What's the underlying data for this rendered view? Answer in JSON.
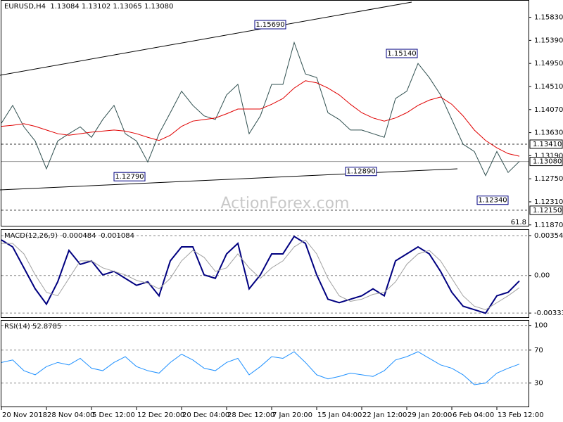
{
  "chart_data": [
    {
      "type": "line",
      "title": "EURUSD,H4  1.13084 1.13102 1.13065 1.13080",
      "watermark": "ActionForex.com",
      "fib_label": "61.8",
      "categories": [
        "20 Nov 2018",
        null,
        null,
        null,
        "28 Nov 04:00",
        null,
        null,
        null,
        "5 Dec 12:00",
        null,
        null,
        null,
        "12 Dec 20:00",
        null,
        null,
        null,
        "20 Dec 04:00",
        null,
        null,
        null,
        "28 Dec 12:00",
        null,
        null,
        null,
        "7 Jan 20:00",
        null,
        null,
        null,
        "15 Jan 04:00",
        null,
        null,
        null,
        "22 Jan 12:00",
        null,
        null,
        null,
        "29 Jan 20:00",
        null,
        null,
        null,
        "6 Feb 04:00",
        null,
        null,
        null,
        "13 Feb 12:00",
        null,
        null
      ],
      "series": [
        {
          "color": "#2f4f4f",
          "values": [
            1.1381,
            1.1415,
            1.1374,
            1.1347,
            1.1294,
            1.1347,
            1.1361,
            1.1374,
            1.1354,
            1.1388,
            1.1415,
            1.1361,
            1.1347,
            1.1307,
            1.1361,
            1.1401,
            1.1442,
            1.1415,
            1.1395,
            1.1388,
            1.1435,
            1.1455,
            1.1361,
            1.1395,
            1.1455,
            1.1455,
            1.1535,
            1.1475,
            1.1468,
            1.1401,
            1.1388,
            1.1368,
            1.1368,
            1.1361,
            1.1354,
            1.1428,
            1.1442,
            1.1495,
            1.1468,
            1.1435,
            1.1388,
            1.1341,
            1.1327,
            1.1281,
            1.1327,
            1.1287,
            1.1308
          ]
        },
        {
          "color": "#e00000",
          "values": [
            1.1375,
            1.1377,
            1.138,
            1.1375,
            1.1368,
            1.1361,
            1.1358,
            1.1361,
            1.1364,
            1.1366,
            1.1368,
            1.1366,
            1.1361,
            1.1354,
            1.1348,
            1.1358,
            1.1375,
            1.1385,
            1.1388,
            1.1391,
            1.1399,
            1.1408,
            1.1408,
            1.1408,
            1.1417,
            1.1428,
            1.1448,
            1.1462,
            1.1458,
            1.1448,
            1.1435,
            1.1417,
            1.1401,
            1.1391,
            1.1385,
            1.1391,
            1.1401,
            1.1415,
            1.1425,
            1.1431,
            1.1417,
            1.1395,
            1.1368,
            1.1348,
            1.1334,
            1.1323,
            1.1318
          ]
        }
      ],
      "ylim": [
        1.1184,
        1.1616
      ],
      "yticks": [
        {
          "value": 1.1583,
          "label": "1.15830"
        },
        {
          "value": 1.1539,
          "label": "1.15390"
        },
        {
          "value": 1.1495,
          "label": "1.14950"
        },
        {
          "value": 1.1451,
          "label": "1.14510"
        },
        {
          "value": 1.1407,
          "label": "1.14070"
        },
        {
          "value": 1.1363,
          "label": "1.13630"
        },
        {
          "value": 1.1319,
          "label": "1.13190"
        },
        {
          "value": 1.1275,
          "label": "1.12750"
        },
        {
          "value": 1.1231,
          "label": "1.12310"
        },
        {
          "value": 1.1187,
          "label": "1.11870"
        }
      ],
      "levels": [
        {
          "value": 1.1341,
          "label": "1.13410",
          "style": "dashed"
        },
        {
          "value": 1.1308,
          "label": "1.13080",
          "style": "solid"
        },
        {
          "value": 1.1215,
          "label": "1.12150",
          "style": "dashed"
        }
      ],
      "annotations": [
        {
          "value": 1.1569,
          "label": "1.15690"
        },
        {
          "value": 1.1514,
          "label": "1.15140"
        },
        {
          "value": 1.1279,
          "label": "1.12790"
        },
        {
          "value": 1.1289,
          "label": "1.12890"
        },
        {
          "value": 1.1234,
          "label": "1.12340"
        }
      ]
    },
    {
      "type": "line",
      "title": "MACD(12,26,9) -0.000484 -0.001084",
      "series": [
        {
          "color": "#000080",
          "width": 2,
          "values": [
            0.00316,
            0.00254,
            0.00068,
            -0.00118,
            -0.00254,
            -0.00056,
            0.00223,
            0.00099,
            0.0013,
            6e-05,
            0.00037,
            -0.00025,
            -0.00087,
            -0.00056,
            -0.0018,
            0.0013,
            0.00254,
            0.00254,
            6e-05,
            -0.00025,
            0.00192,
            0.00285,
            -0.00118,
            6e-05,
            0.00192,
            0.00192,
            0.00347,
            0.00285,
            6e-05,
            -0.0021,
            -0.00241,
            -0.0021,
            -0.0018,
            -0.00118,
            -0.0018,
            0.0013,
            0.00192,
            0.00254,
            0.00192,
            0.00037,
            -0.00149,
            -0.00272,
            -0.00303,
            -0.00334,
            -0.0018,
            -0.00149,
            -0.00048
          ]
        },
        {
          "color": "#a0a0a0",
          "width": 1,
          "values": [
            0.00285,
            0.00285,
            0.00192,
            6e-05,
            -0.00149,
            -0.0018,
            -0.00025,
            0.0013,
            0.0013,
            0.00068,
            0.00037,
            6e-05,
            -0.00043,
            -0.00068,
            -0.00118,
            -0.00025,
            0.0013,
            0.00223,
            0.00161,
            0.00037,
            0.00068,
            0.00192,
            0.00068,
            -0.00025,
            0.00068,
            0.0013,
            0.00254,
            0.00316,
            0.00192,
            -0.00025,
            -0.0018,
            -0.00229,
            -0.0021,
            -0.00167,
            -0.00149,
            -0.00056,
            0.00099,
            0.00192,
            0.00223,
            0.0013,
            -0.00025,
            -0.0018,
            -0.00272,
            -0.00303,
            -0.00241,
            -0.0018,
            -0.00108
          ]
        }
      ],
      "ylim": [
        -0.00376,
        0.00404
      ],
      "yticks": [
        0.003544,
        {
          "value": 0,
          "label": "0.00"
        },
        -0.003331
      ]
    },
    {
      "type": "line",
      "title": "RSI(14) 52.8785",
      "series": [
        {
          "color": "#1e90ff",
          "width": 1,
          "values": [
            55,
            58,
            45,
            40,
            50,
            55,
            52,
            60,
            48,
            45,
            55,
            62,
            50,
            45,
            42,
            55,
            65,
            58,
            48,
            45,
            55,
            60,
            40,
            50,
            62,
            60,
            68,
            55,
            40,
            35,
            38,
            42,
            40,
            38,
            45,
            58,
            62,
            68,
            60,
            52,
            48,
            40,
            28,
            30,
            42,
            48,
            53
          ]
        }
      ],
      "ylim": [
        0.6,
        105.7
      ],
      "yticks": [
        100,
        70,
        30
      ]
    }
  ]
}
